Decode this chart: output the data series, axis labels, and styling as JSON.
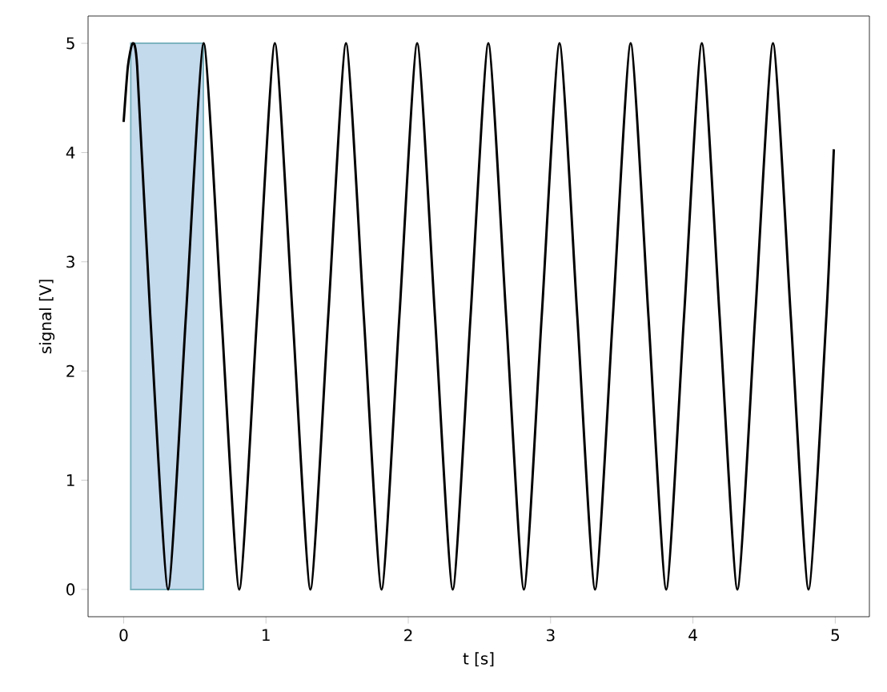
{
  "chart_data": {
    "type": "line",
    "xlabel": "t [s]",
    "ylabel": "signal [V]",
    "xlim": [
      -0.25,
      5.24
    ],
    "ylim": [
      -0.25,
      5.25
    ],
    "xticks": [
      0,
      1,
      2,
      3,
      4,
      5
    ],
    "yticks": [
      0,
      1,
      2,
      3,
      4,
      5
    ],
    "grid": false,
    "marker": "none",
    "line_style": "solid",
    "series": [
      {
        "type": "area",
        "color": "#c3d9ec",
        "x": [
          0.05,
          0.56
        ],
        "values": [
          5,
          5
        ]
      },
      {
        "color": "#000000",
        "x": [
          0,
          0.03,
          0.0625,
          0.095,
          0.1875,
          0.3125,
          0.4375,
          0.5625,
          0.6875,
          0.8125,
          0.9375,
          1.0625,
          1.1875,
          1.3125,
          1.4375,
          1.5625,
          1.6875,
          1.8125,
          1.9375,
          2.0625,
          2.1875,
          2.3125,
          2.4375,
          2.5625,
          2.6875,
          2.8125,
          2.9375,
          3.0625,
          3.1875,
          3.3125,
          3.4375,
          3.5625,
          3.6875,
          3.8125,
          3.9375,
          4.0625,
          4.1875,
          4.3125,
          4.4375,
          4.5625,
          4.6875,
          4.8125,
          4.9375,
          4.99
        ],
        "values": [
          4.28,
          4.79,
          5,
          4.79,
          2.5,
          0,
          2.5,
          5,
          2.5,
          0,
          2.5,
          5,
          2.5,
          0,
          2.5,
          5,
          2.5,
          0,
          2.5,
          5,
          2.5,
          0,
          2.5,
          5,
          2.5,
          0,
          2.5,
          5,
          2.5,
          0,
          2.5,
          5,
          2.5,
          0,
          2.5,
          5,
          2.5,
          0,
          2.5,
          5,
          2.5,
          0,
          2.5,
          4.03
        ]
      }
    ]
  }
}
